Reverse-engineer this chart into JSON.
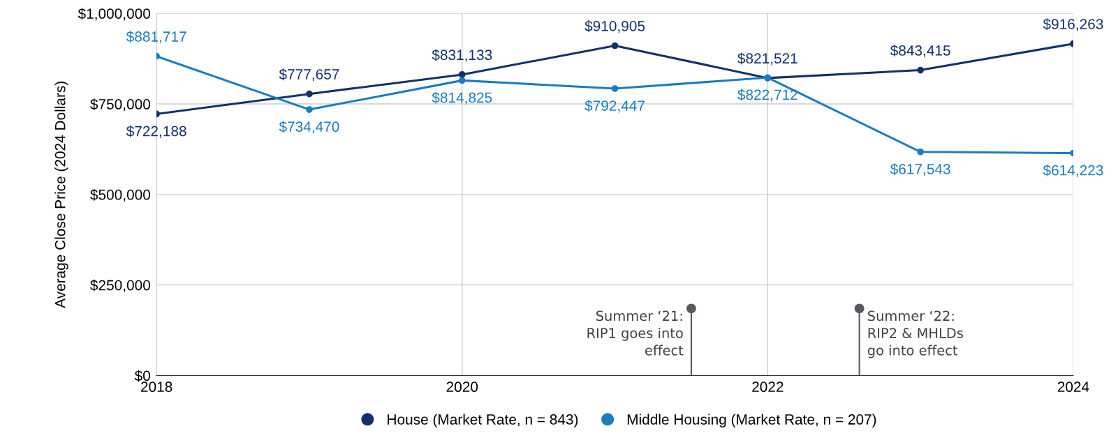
{
  "chart_data": {
    "type": "line",
    "ylabel": "Average Close Price (2024 Dollars)",
    "x": [
      2018,
      2019,
      2020,
      2021,
      2022,
      2023,
      2024
    ],
    "series": [
      {
        "name": "House (Market Rate, n = 843)",
        "color": "#13306b",
        "values": [
          722188,
          777657,
          831133,
          910905,
          821521,
          843415,
          916263
        ],
        "value_labels": [
          "$722,188",
          "$777,657",
          "$831,133",
          "$910,905",
          "$821,521",
          "$843,415",
          "$916,263"
        ]
      },
      {
        "name": "Middle Housing (Market Rate, n = 207)",
        "color": "#1b7cc0",
        "values": [
          881717,
          734470,
          814825,
          792447,
          822712,
          617543,
          614223
        ],
        "value_labels": [
          "$881,717",
          "$734,470",
          "$814,825",
          "$792,447",
          "$822,712",
          "$617,543",
          "$614,223"
        ]
      }
    ],
    "xlim": [
      2018,
      2024
    ],
    "xticks": [
      2018,
      2020,
      2022,
      2024
    ],
    "ylim": [
      0,
      1000000
    ],
    "yticks": [
      {
        "value": 0,
        "label": "$0"
      },
      {
        "value": 250000,
        "label": "$250,000"
      },
      {
        "value": 500000,
        "label": "$500,000"
      },
      {
        "value": 750000,
        "label": "$750,000"
      },
      {
        "value": 1000000,
        "label": "$1,000,000"
      }
    ],
    "grid": true,
    "legend": "bottom",
    "marker": "circle",
    "line_style": "solid",
    "annotations": [
      {
        "text": "Summer ‘21:\nRIP1 goes into\neffect",
        "x": 2021.5,
        "y": 185000
      },
      {
        "text": "Summer ‘22:\nRIP2 & MHLDs\ngo into effect",
        "x": 2022.6,
        "y": 185000
      }
    ]
  }
}
